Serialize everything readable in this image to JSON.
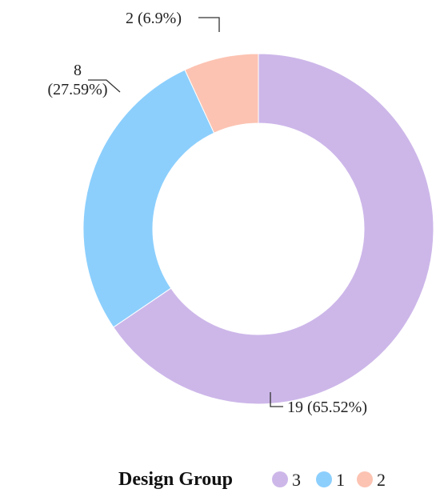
{
  "chart_data": {
    "type": "pie",
    "variant": "donut",
    "title": "",
    "legend_title": "Design Group",
    "legend_position": "bottom",
    "categories": [
      "3",
      "1",
      "2"
    ],
    "values": [
      19,
      8,
      2
    ],
    "colors": [
      "#cdb7e9",
      "#8ccffd",
      "#fcc3b2"
    ],
    "slices": [
      {
        "category": "3",
        "value": 19,
        "label_lines": [
          "19 (65.52%)"
        ],
        "color": "#cdb7e9"
      },
      {
        "category": "1",
        "value": 8,
        "label_lines": [
          "8",
          "(27.59%)"
        ],
        "color": "#8ccffd"
      },
      {
        "category": "2",
        "value": 2,
        "label_lines": [
          "2 (6.9%)"
        ],
        "color": "#fcc3b2"
      }
    ]
  }
}
